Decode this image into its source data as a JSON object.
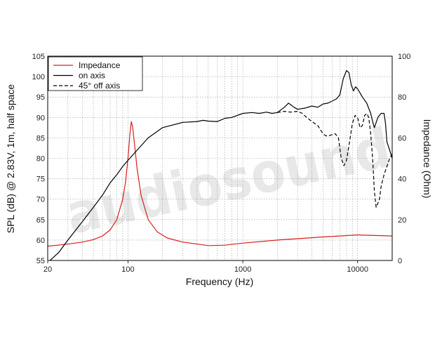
{
  "chart_data": {
    "type": "line",
    "x_scale": "log",
    "xlim": [
      20,
      20000
    ],
    "ylim_left": [
      55,
      105
    ],
    "ylim_right": [
      0,
      100
    ],
    "grid": true,
    "legend_position": "top-left",
    "xlabel": "Frequency (Hz)",
    "ylabel_left": "SPL (dB) @ 2.83V, 1m, half space",
    "ylabel_right": "Impedance (Ohm)",
    "x_ticks": [
      {
        "value": 20,
        "label": "20"
      },
      {
        "value": 100,
        "label": "100"
      },
      {
        "value": 1000,
        "label": "1000"
      },
      {
        "value": 10000,
        "label": "10000"
      }
    ],
    "y_left_ticks": [
      "55",
      "60",
      "65",
      "70",
      "75",
      "80",
      "85",
      "90",
      "95",
      "100",
      "105"
    ],
    "y_right_ticks": [
      "0",
      "20",
      "40",
      "60",
      "80",
      "100"
    ],
    "watermark": "audiosound",
    "series": [
      {
        "name": "Impedance",
        "axis": "right",
        "color": "#d62020",
        "dash": "none",
        "points": [
          [
            20,
            7
          ],
          [
            30,
            8
          ],
          [
            40,
            9
          ],
          [
            50,
            10.2
          ],
          [
            60,
            12
          ],
          [
            70,
            15
          ],
          [
            80,
            20
          ],
          [
            90,
            30
          ],
          [
            95,
            38
          ],
          [
            100,
            50
          ],
          [
            104,
            62
          ],
          [
            107,
            68
          ],
          [
            110,
            65
          ],
          [
            115,
            55
          ],
          [
            120,
            45
          ],
          [
            130,
            32
          ],
          [
            150,
            20
          ],
          [
            180,
            14
          ],
          [
            220,
            11
          ],
          [
            300,
            9
          ],
          [
            500,
            7.3
          ],
          [
            700,
            7.5
          ],
          [
            1000,
            8.5
          ],
          [
            2000,
            10
          ],
          [
            5000,
            11.5
          ],
          [
            10000,
            12.5
          ],
          [
            20000,
            12
          ]
        ]
      },
      {
        "name": "on axis",
        "axis": "left",
        "color": "#000000",
        "dash": "none",
        "points": [
          [
            20,
            54.5
          ],
          [
            25,
            57
          ],
          [
            30,
            60
          ],
          [
            40,
            64.5
          ],
          [
            50,
            68
          ],
          [
            60,
            71
          ],
          [
            70,
            74
          ],
          [
            80,
            76
          ],
          [
            90,
            78
          ],
          [
            100,
            79.5
          ],
          [
            120,
            82
          ],
          [
            150,
            85
          ],
          [
            200,
            87.5
          ],
          [
            300,
            88.8
          ],
          [
            400,
            89
          ],
          [
            450,
            89.3
          ],
          [
            500,
            89.1
          ],
          [
            600,
            89
          ],
          [
            700,
            89.8
          ],
          [
            800,
            90
          ],
          [
            1000,
            91
          ],
          [
            1200,
            91.2
          ],
          [
            1400,
            91
          ],
          [
            1600,
            91.3
          ],
          [
            1800,
            91
          ],
          [
            2000,
            91.2
          ],
          [
            2300,
            92.5
          ],
          [
            2500,
            93.5
          ],
          [
            2800,
            92.5
          ],
          [
            3000,
            92
          ],
          [
            3500,
            92.3
          ],
          [
            4000,
            92.8
          ],
          [
            4500,
            92.5
          ],
          [
            5000,
            93.3
          ],
          [
            5500,
            93.5
          ],
          [
            6000,
            94
          ],
          [
            6500,
            94.5
          ],
          [
            7000,
            95.5
          ],
          [
            7500,
            99.5
          ],
          [
            8000,
            101.5
          ],
          [
            8400,
            101
          ],
          [
            8800,
            98
          ],
          [
            9200,
            96.5
          ],
          [
            9600,
            97.5
          ],
          [
            10000,
            97
          ],
          [
            10500,
            96
          ],
          [
            11000,
            95
          ],
          [
            12000,
            93.5
          ],
          [
            13000,
            91
          ],
          [
            13500,
            89
          ],
          [
            14000,
            87.5
          ],
          [
            15000,
            90
          ],
          [
            16000,
            91
          ],
          [
            17000,
            91
          ],
          [
            17500,
            88.5
          ],
          [
            18000,
            84
          ],
          [
            19000,
            82
          ],
          [
            20000,
            80
          ]
        ]
      },
      {
        "name": "45° off axis",
        "axis": "left",
        "color": "#000000",
        "dash": "5,3",
        "points": [
          [
            2000,
            91.2
          ],
          [
            2300,
            91.5
          ],
          [
            2600,
            91.3
          ],
          [
            3000,
            91.5
          ],
          [
            3300,
            91
          ],
          [
            3600,
            90
          ],
          [
            4000,
            89
          ],
          [
            4500,
            88
          ],
          [
            5000,
            86
          ],
          [
            5300,
            85.5
          ],
          [
            5600,
            85.5
          ],
          [
            6000,
            85.8
          ],
          [
            6400,
            86
          ],
          [
            6800,
            85
          ],
          [
            7200,
            80
          ],
          [
            7600,
            78.2
          ],
          [
            8000,
            79.5
          ],
          [
            8500,
            84
          ],
          [
            9000,
            88.5
          ],
          [
            9500,
            90.5
          ],
          [
            10000,
            90
          ],
          [
            10500,
            87.5
          ],
          [
            11000,
            88
          ],
          [
            11500,
            90.5
          ],
          [
            12000,
            91
          ],
          [
            12500,
            90
          ],
          [
            13000,
            86
          ],
          [
            13500,
            80
          ],
          [
            14000,
            72
          ],
          [
            14500,
            68
          ],
          [
            15000,
            69
          ],
          [
            15500,
            70
          ],
          [
            16000,
            73
          ],
          [
            17000,
            76
          ],
          [
            18000,
            78
          ],
          [
            19000,
            80
          ],
          [
            20000,
            81
          ]
        ]
      }
    ]
  }
}
